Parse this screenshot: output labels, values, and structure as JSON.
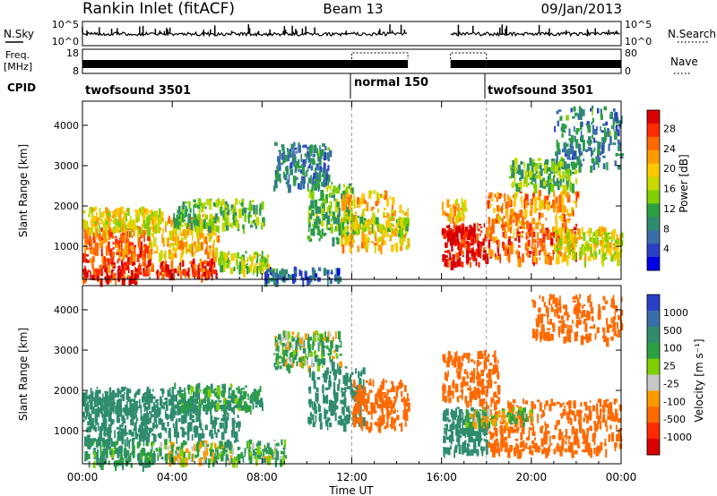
{
  "header": {
    "station": "Rankin Inlet (fitACF)",
    "beam": "Beam 13",
    "date": "09/Jan/2013"
  },
  "sky_panel": {
    "left_label": "N.Sky",
    "right_label": "N.Search",
    "left_ticks": [
      "10^5",
      "10^0"
    ],
    "right_ticks": [
      "10^5",
      "10^0"
    ]
  },
  "freq_panel": {
    "left_label_1": "Freq.",
    "left_label_2": "[MHz]",
    "right_label": "Nave",
    "left_ticks": [
      "18",
      "8"
    ],
    "right_ticks": [
      "80",
      "0"
    ]
  },
  "cpid": {
    "label": "CPID",
    "segments": [
      {
        "name": "twofsound 3501",
        "start_hour": 0
      },
      {
        "name": "normal 150",
        "start_hour": 12
      },
      {
        "name": "twofsound 3501",
        "start_hour": 18
      }
    ]
  },
  "chart_data": [
    {
      "type": "heatmap",
      "title": "",
      "xlabel": "Time UT",
      "ylabel": "Slant Range [km]",
      "x_ticks": [
        "00:00",
        "04:00",
        "08:00",
        "12:00",
        "16:00",
        "20:00",
        "00:00"
      ],
      "x_tick_hours": [
        0,
        4,
        8,
        12,
        16,
        20,
        24
      ],
      "xlim_hours": [
        0,
        24
      ],
      "ylim": [
        180,
        4600
      ],
      "y_ticks": [
        1000,
        2000,
        3000,
        4000
      ],
      "grid": false,
      "colorbar": {
        "label": "Power [dB]",
        "ticks": [
          "28",
          "24",
          "20",
          "16",
          "12",
          "8",
          "4"
        ],
        "colors": [
          "#d80000",
          "#ff2a00",
          "#ff6a00",
          "#ff9a00",
          "#ffc800",
          "#c8d800",
          "#7ed000",
          "#2aa040",
          "#2f8c6e",
          "#3a6eaa",
          "#2a40c8",
          "#0000e8"
        ]
      },
      "scatter_regions": [
        {
          "t": [
            0.0,
            2.5
          ],
          "r": [
            200,
            800
          ],
          "value": 26
        },
        {
          "t": [
            0.0,
            3.0
          ],
          "r": [
            800,
            1500
          ],
          "value": 24
        },
        {
          "t": [
            0.0,
            3.5
          ],
          "r": [
            1400,
            2000
          ],
          "value": 18
        },
        {
          "t": [
            2.5,
            6.0
          ],
          "r": [
            300,
            700
          ],
          "value": 26
        },
        {
          "t": [
            3.0,
            6.0
          ],
          "r": [
            800,
            1800
          ],
          "value": 20
        },
        {
          "t": [
            4.0,
            8.0
          ],
          "r": [
            1500,
            2200
          ],
          "value": 14
        },
        {
          "t": [
            6.0,
            8.5
          ],
          "r": [
            400,
            900
          ],
          "value": 16
        },
        {
          "t": [
            8.0,
            11.5
          ],
          "r": [
            200,
            500
          ],
          "value": 8
        },
        {
          "t": [
            8.5,
            11.0
          ],
          "r": [
            2500,
            3600
          ],
          "value": 10
        },
        {
          "t": [
            10.0,
            12.0
          ],
          "r": [
            1200,
            2600
          ],
          "value": 14
        },
        {
          "t": [
            11.5,
            14.5
          ],
          "r": [
            1000,
            2400
          ],
          "value": 20
        },
        {
          "t": [
            11.5,
            14.5
          ],
          "r": [
            1400,
            1800
          ],
          "value": 16
        },
        {
          "t": [
            16.0,
            18.0
          ],
          "r": [
            600,
            1600
          ],
          "value": 28
        },
        {
          "t": [
            16.0,
            17.0
          ],
          "r": [
            1700,
            2200
          ],
          "value": 20
        },
        {
          "t": [
            18.0,
            22.0
          ],
          "r": [
            700,
            1600
          ],
          "value": 24
        },
        {
          "t": [
            18.0,
            22.0
          ],
          "r": [
            1600,
            2400
          ],
          "value": 22
        },
        {
          "t": [
            21.0,
            24.0
          ],
          "r": [
            700,
            1500
          ],
          "value": 18
        },
        {
          "t": [
            21.0,
            24.0
          ],
          "r": [
            3000,
            4500
          ],
          "value": 10
        },
        {
          "t": [
            19.0,
            22.0
          ],
          "r": [
            2500,
            3200
          ],
          "value": 14
        }
      ]
    },
    {
      "type": "heatmap",
      "title": "",
      "xlabel": "Time UT",
      "ylabel": "Slant Range [km]",
      "x_ticks": [
        "00:00",
        "04:00",
        "08:00",
        "12:00",
        "16:00",
        "20:00",
        "00:00"
      ],
      "x_tick_hours": [
        0,
        4,
        8,
        12,
        16,
        20,
        24
      ],
      "xlim_hours": [
        0,
        24
      ],
      "ylim": [
        180,
        4600
      ],
      "y_ticks": [
        1000,
        2000,
        3000,
        4000
      ],
      "grid": false,
      "colorbar": {
        "label": "Velocity [m s⁻¹]",
        "ticks": [
          "1000",
          "500",
          "100",
          "25",
          "-25",
          "-100",
          "-500",
          "-1000"
        ],
        "colors": [
          "#2a40c8",
          "#3a6eaa",
          "#2f8c6e",
          "#2aa040",
          "#7ed000",
          "#c8c8c8",
          "#ff9a00",
          "#ff6a00",
          "#ff2a00",
          "#d80000"
        ]
      },
      "scatter_regions": [
        {
          "t": [
            0.0,
            3.0
          ],
          "r": [
            200,
            800
          ],
          "value": 100
        },
        {
          "t": [
            0.0,
            3.0
          ],
          "r": [
            800,
            1600
          ],
          "value": 300
        },
        {
          "t": [
            0.0,
            4.0
          ],
          "r": [
            1500,
            2100
          ],
          "value": 200
        },
        {
          "t": [
            3.0,
            6.0
          ],
          "r": [
            300,
            800
          ],
          "value": 25
        },
        {
          "t": [
            3.0,
            7.0
          ],
          "r": [
            900,
            1800
          ],
          "value": 200
        },
        {
          "t": [
            4.0,
            8.0
          ],
          "r": [
            1600,
            2200
          ],
          "value": 100
        },
        {
          "t": [
            6.0,
            9.0
          ],
          "r": [
            300,
            800
          ],
          "value": 60
        },
        {
          "t": [
            8.5,
            11.5
          ],
          "r": [
            2600,
            3500
          ],
          "value": 50
        },
        {
          "t": [
            10.0,
            12.5
          ],
          "r": [
            1200,
            2600
          ],
          "value": 300
        },
        {
          "t": [
            12.0,
            14.5
          ],
          "r": [
            1100,
            2300
          ],
          "value": -300
        },
        {
          "t": [
            16.0,
            18.0
          ],
          "r": [
            500,
            1600
          ],
          "value": 200
        },
        {
          "t": [
            16.0,
            18.5
          ],
          "r": [
            1700,
            3000
          ],
          "value": -200
        },
        {
          "t": [
            18.0,
            24.0
          ],
          "r": [
            500,
            1100
          ],
          "value": -300
        },
        {
          "t": [
            18.0,
            24.0
          ],
          "r": [
            1100,
            1800
          ],
          "value": -200
        },
        {
          "t": [
            20.0,
            24.0
          ],
          "r": [
            3300,
            4400
          ],
          "value": -300
        },
        {
          "t": [
            17.0,
            20.0
          ],
          "r": [
            1200,
            1600
          ],
          "value": 0
        }
      ]
    }
  ]
}
